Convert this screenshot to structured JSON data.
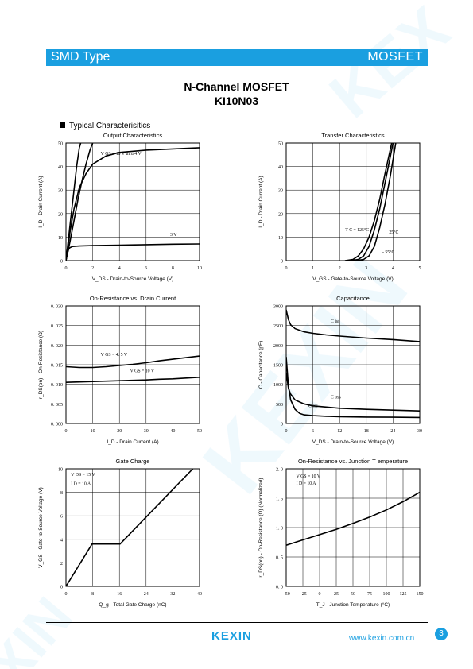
{
  "header": {
    "left": "SMD Type",
    "right": "MOSFET",
    "color": "#1a9fe0"
  },
  "title": {
    "line1": "N-Channel MOSFET",
    "line2": "KI10N03"
  },
  "section": "Typical  Characterisitics",
  "footer": {
    "logo": "KEXIN",
    "url": "www.kexin.com.cn",
    "page": "3"
  },
  "chart_data": [
    {
      "type": "line",
      "title": "Output  Characteristics",
      "xlabel": "V_DS  -  Drain-to-Source Voltage (V)",
      "ylabel": "I_D  -  Drain Current (A)",
      "xlim": [
        0,
        10
      ],
      "ylim": [
        0,
        50
      ],
      "xticks": [
        0,
        2,
        4,
        6,
        8,
        10
      ],
      "yticks": [
        0,
        10,
        20,
        30,
        40,
        50
      ],
      "ytick_labels": [
        "0",
        "10",
        "20",
        "30",
        "40",
        "50"
      ],
      "grid": true,
      "series": [
        {
          "name": "V_GS = 10 V thru 4 V",
          "x": [
            0,
            0.2,
            0.4,
            0.6,
            0.8,
            1.0,
            1.1
          ],
          "y": [
            0,
            10,
            20,
            30,
            40,
            48,
            50
          ]
        },
        {
          "name": "",
          "x": [
            0,
            0.3,
            0.6,
            0.9,
            1.2,
            1.5,
            1.8,
            2.0
          ],
          "y": [
            0,
            8,
            17,
            26,
            34,
            41,
            47,
            50
          ]
        },
        {
          "name": "",
          "x": [
            0,
            0.3,
            0.6,
            1.0,
            1.5,
            2.0,
            3.0,
            4.0,
            6.0,
            8.0,
            10.0
          ],
          "y": [
            0,
            12,
            22,
            31,
            37,
            41,
            44.5,
            46,
            47,
            47.5,
            48
          ]
        },
        {
          "name": "3 V",
          "x": [
            0,
            0.1,
            0.2,
            0.3,
            0.5,
            1.0,
            2.0,
            4.0,
            6.0,
            8.0,
            10.0
          ],
          "y": [
            0,
            3,
            4.8,
            5.5,
            6,
            6.2,
            6.4,
            6.6,
            6.8,
            7,
            7.1
          ]
        }
      ],
      "annotations": [
        {
          "text": "V GS  = 10 V  thru  4  V"
        },
        {
          "text": "3  V"
        }
      ]
    },
    {
      "type": "line",
      "title": "Transfer Characteristics",
      "xlabel": "V_GS  -  Gate-to-Source Voltage (V)",
      "ylabel": "I_D  -  Drain Current (A)",
      "xlim": [
        0,
        5
      ],
      "ylim": [
        0,
        50
      ],
      "xticks": [
        0,
        1,
        2,
        3,
        4,
        5
      ],
      "yticks": [
        0,
        10,
        20,
        30,
        40,
        50
      ],
      "ytick_labels": [
        "0",
        "10",
        "20",
        "30",
        "40",
        "50"
      ],
      "grid": true,
      "series": [
        {
          "name": "T C = 125°C",
          "x": [
            2.2,
            2.5,
            2.7,
            2.9,
            3.1,
            3.3,
            3.5,
            3.7,
            3.95
          ],
          "y": [
            0,
            0.5,
            2,
            5,
            10,
            17,
            26,
            37,
            50
          ]
        },
        {
          "name": "25°C",
          "x": [
            2.4,
            2.7,
            2.9,
            3.1,
            3.3,
            3.5,
            3.7,
            4.0
          ],
          "y": [
            0,
            0.5,
            2,
            6,
            13,
            22,
            33,
            50
          ]
        },
        {
          "name": "-55°C",
          "x": [
            2.6,
            2.9,
            3.1,
            3.3,
            3.5,
            3.7,
            3.9,
            4.1
          ],
          "y": [
            0,
            0.5,
            2,
            6,
            14,
            24,
            36,
            50
          ]
        }
      ],
      "annotations": [
        {
          "text": "T C  = 125°C"
        },
        {
          "text": "25°C"
        },
        {
          "text": "- 55°C"
        }
      ]
    },
    {
      "type": "line",
      "title": "On-Resistance vs. Drain Current",
      "xlabel": "I_D  -  Drain Current (A)",
      "ylabel": "r_DS(on)  -  On-Resistance (Ω)",
      "xlim": [
        0,
        50
      ],
      "ylim": [
        0,
        0.03
      ],
      "xticks": [
        0,
        10,
        20,
        30,
        40,
        50
      ],
      "yticks": [
        0,
        0.005,
        0.01,
        0.015,
        0.02,
        0.025,
        0.03
      ],
      "ytick_labels": [
        "0. 000",
        "0. 005",
        "0. 010",
        "0. 015",
        "0. 020",
        "0. 025",
        "0. 030"
      ],
      "grid": true,
      "series": [
        {
          "name": "V GS = 4.5 V",
          "x": [
            0,
            5,
            10,
            15,
            20,
            25,
            30,
            35,
            40,
            45,
            50
          ],
          "y": [
            0.0145,
            0.0143,
            0.0143,
            0.0145,
            0.0148,
            0.0151,
            0.0155,
            0.016,
            0.0164,
            0.0168,
            0.0172
          ]
        },
        {
          "name": "V GS = 10 V",
          "x": [
            0,
            5,
            10,
            15,
            20,
            25,
            30,
            35,
            40,
            45,
            50
          ],
          "y": [
            0.0105,
            0.0106,
            0.0107,
            0.0108,
            0.0109,
            0.011,
            0.0111,
            0.0113,
            0.0114,
            0.0116,
            0.0118
          ]
        }
      ],
      "annotations": [
        {
          "text": "V GS  =  4. 5  V"
        },
        {
          "text": "V GS  =  10  V"
        }
      ]
    },
    {
      "type": "line",
      "title": "Capacitance",
      "xlabel": "V_DS  -  Drain-to-Source Voltage (V)",
      "ylabel": "C  -  Capacitance (pF)",
      "xlim": [
        0,
        30
      ],
      "ylim": [
        0,
        3000
      ],
      "xticks": [
        0,
        6,
        12,
        18,
        24,
        30
      ],
      "yticks": [
        0,
        500,
        1000,
        1500,
        2000,
        2500,
        3000
      ],
      "ytick_labels": [
        "0",
        "500",
        "1000",
        "1500",
        "2000",
        "2500",
        "3000"
      ],
      "grid": true,
      "series": [
        {
          "name": "C iss",
          "x": [
            0,
            0.5,
            1,
            2,
            4,
            6,
            9,
            12,
            18,
            24,
            30
          ],
          "y": [
            2900,
            2650,
            2520,
            2420,
            2340,
            2300,
            2260,
            2230,
            2180,
            2140,
            2090
          ]
        },
        {
          "name": "C oss",
          "x": [
            0,
            0.5,
            1,
            2,
            4,
            6,
            9,
            12,
            18,
            24,
            30
          ],
          "y": [
            1300,
            900,
            750,
            600,
            500,
            450,
            420,
            390,
            360,
            340,
            320
          ]
        },
        {
          "name": "C rss",
          "x": [
            0,
            0.5,
            1,
            2,
            3,
            4,
            6,
            9,
            12,
            18,
            24,
            30
          ],
          "y": [
            1700,
            950,
            600,
            360,
            260,
            220,
            200,
            185,
            175,
            165,
            160,
            155
          ]
        }
      ],
      "annotations": [
        {
          "text": "C iss"
        },
        {
          "text": "C oss"
        },
        {
          "text": "C rss"
        }
      ]
    },
    {
      "type": "line",
      "title": "Gate Charge",
      "xlabel": "Q_g  -  Total Gate Charge (nC)",
      "ylabel": "V_GS  -  Gate-to-Source Voltage (V)",
      "xlim": [
        0,
        40
      ],
      "ylim": [
        0,
        10
      ],
      "xticks": [
        0,
        8,
        16,
        24,
        32,
        40
      ],
      "yticks": [
        0,
        2,
        4,
        6,
        8,
        10
      ],
      "ytick_labels": [
        "0",
        "2",
        "4",
        "6",
        "8",
        "10"
      ],
      "grid": true,
      "series": [
        {
          "name": "",
          "x": [
            0,
            7.8,
            16.2,
            38
          ],
          "y": [
            0,
            3.6,
            3.6,
            10
          ]
        }
      ],
      "annotations": [
        {
          "text": "V DS  =  15  V"
        },
        {
          "text": "I D  =  10  A"
        }
      ]
    },
    {
      "type": "line",
      "title": "On-Resistance vs. Junction T   emperature",
      "xlabel": "T_J  -  Junction Temperature (°C)",
      "ylabel": "r_DS(on)  -  On-Resistance (Ω) (Normalized)",
      "xlim": [
        -50,
        150
      ],
      "ylim": [
        0,
        2
      ],
      "xticks": [
        -50,
        -25,
        0,
        25,
        50,
        75,
        100,
        125,
        150
      ],
      "xtick_labels": [
        "- 50",
        "- 25",
        "0",
        "25",
        "50",
        "75",
        "100",
        "125",
        "150"
      ],
      "yticks": [
        0,
        0.5,
        1,
        1.5,
        2
      ],
      "ytick_labels": [
        "0. 0",
        "0. 5",
        "1. 0",
        "1. 5",
        "2. 0"
      ],
      "grid": true,
      "series": [
        {
          "name": "",
          "x": [
            -50,
            -25,
            0,
            25,
            50,
            75,
            100,
            125,
            150
          ],
          "y": [
            0.7,
            0.79,
            0.88,
            0.97,
            1.07,
            1.18,
            1.3,
            1.44,
            1.6
          ]
        }
      ],
      "annotations": [
        {
          "text": "V GS  =  10  V"
        },
        {
          "text": "I D  =  10  A"
        }
      ]
    }
  ]
}
